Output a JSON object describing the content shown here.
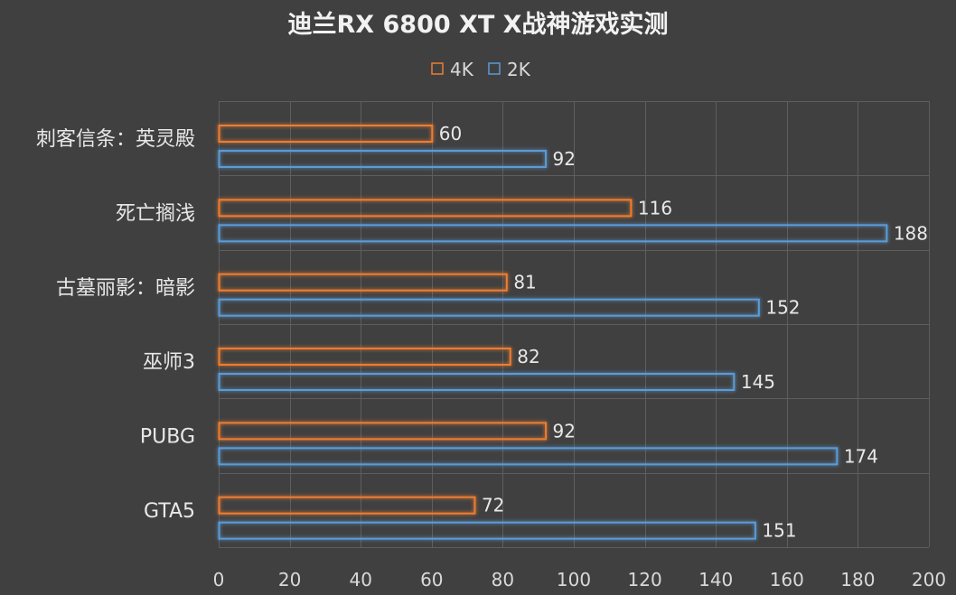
{
  "chart_data": {
    "type": "bar",
    "orientation": "horizontal",
    "title": "迪兰RX 6800 XT X战神游戏实测",
    "categories": [
      "刺客信条：英灵殿",
      "死亡搁浅",
      "古墓丽影：暗影",
      "巫师3",
      "PUBG",
      "GTA5"
    ],
    "series": [
      {
        "name": "4K",
        "color": "#ed7d31",
        "values": [
          60,
          116,
          81,
          82,
          92,
          72
        ]
      },
      {
        "name": "2K",
        "color": "#5b9bd5",
        "values": [
          92,
          188,
          152,
          145,
          174,
          151
        ]
      }
    ],
    "xlim": [
      0,
      200
    ],
    "xticks": [
      0,
      20,
      40,
      60,
      80,
      100,
      120,
      140,
      160,
      180,
      200
    ],
    "grid": true,
    "legend_position": "top"
  }
}
